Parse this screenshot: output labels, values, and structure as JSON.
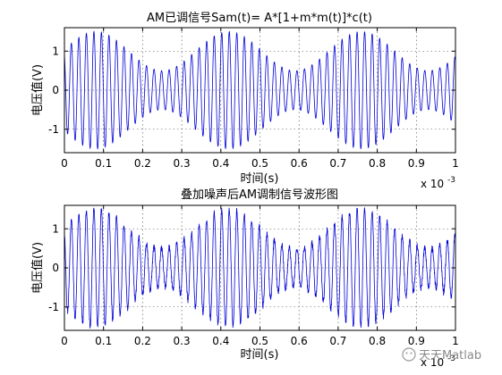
{
  "charts": [
    {
      "title": "AM已调信号Sam(t)= A*[1+m*m(t)]*c(t)",
      "xlabel": "时间(s)",
      "ylabel": "电压值(V)",
      "exponent_label": "x 10",
      "exponent_power": "-3",
      "x_ticks": [
        "0",
        "0.1",
        "0.2",
        "0.3",
        "0.4",
        "0.5",
        "0.6",
        "0.7",
        "0.8",
        "0.9",
        "1"
      ],
      "y_ticks": [
        "1",
        "0",
        "-1"
      ]
    },
    {
      "title": "叠加噪声后AM调制信号波形图",
      "xlabel": "时间(s)",
      "ylabel": "电压值(V)",
      "exponent_label": "x 10",
      "exponent_power": "-3",
      "x_ticks": [
        "0",
        "0.1",
        "0.2",
        "0.3",
        "0.4",
        "0.5",
        "0.6",
        "0.7",
        "0.8",
        "0.9",
        "1"
      ],
      "y_ticks": [
        "1",
        "0",
        "-1"
      ]
    }
  ],
  "watermark": {
    "text": "天天Matlab"
  },
  "chart_data": [
    {
      "type": "line",
      "title": "AM已调信号Sam(t)= A*[1+m*m(t)]*c(t)",
      "xlabel": "时间(s)",
      "ylabel": "电压值(V)",
      "x_scale_note": "x 10^-3",
      "xlim": [
        0,
        1
      ],
      "ylim": [
        -1.6,
        1.6
      ],
      "grid": true,
      "series": [
        {
          "color": "#0000d6",
          "carrier_cycles": 52,
          "envelope_peaks_x": [
            0.08,
            0.41,
            0.74
          ],
          "envelope_troughs_x": [
            0.25,
            0.58,
            0.91
          ],
          "peak_amplitude": 1.5,
          "trough_amplitude": 0.5
        }
      ]
    },
    {
      "type": "line",
      "title": "叠加噪声后AM调制信号波形图",
      "xlabel": "时间(s)",
      "ylabel": "电压值(V)",
      "x_scale_note": "x 10^-3",
      "xlim": [
        0,
        1
      ],
      "ylim": [
        -1.6,
        1.6
      ],
      "grid": true,
      "series": [
        {
          "color": "#0000d6",
          "carrier_cycles": 52,
          "envelope_peaks_x": [
            0.08,
            0.41,
            0.74
          ],
          "envelope_troughs_x": [
            0.25,
            0.58,
            0.91
          ],
          "peak_amplitude": 1.5,
          "trough_amplitude": 0.5,
          "noise_amplitude": 0.08
        }
      ]
    }
  ]
}
